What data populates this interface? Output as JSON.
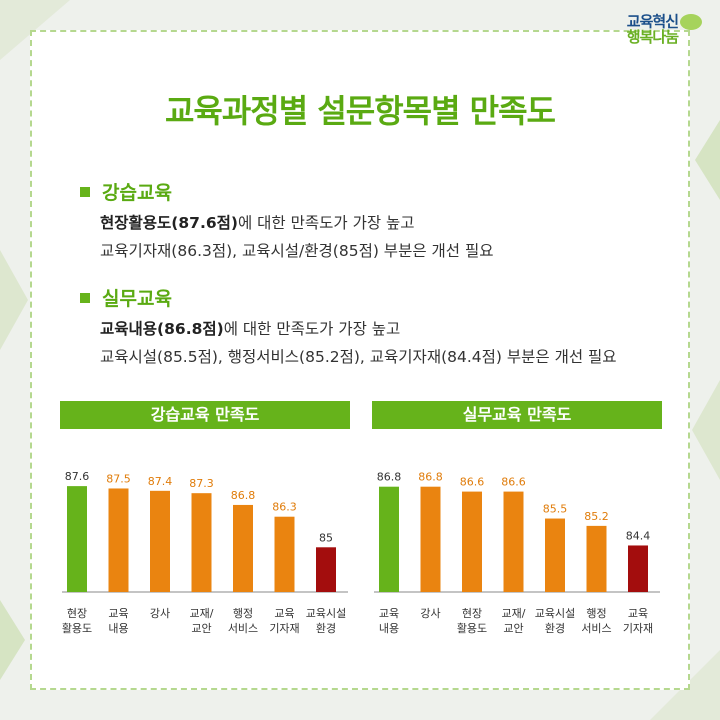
{
  "logo": {
    "part1": "교육혁신",
    "part2": "행복나눔"
  },
  "title": "교육과정별 설문항목별 만족도",
  "summary": [
    {
      "name": "강습교육",
      "highlight": "현장활용도(87.6점)",
      "line1_rest": "에 대한 만족도가 가장 높고",
      "line2": "교육기자재(86.3점), 교육시설/환경(85점) 부분은 개선 필요"
    },
    {
      "name": "실무교육",
      "highlight": "교육내용(86.8점)",
      "line1_rest": "에 대한 만족도가 가장 높고",
      "line2": "교육시설(85.5점), 행정서비스(85.2점), 교육기자재(84.4점) 부분은 개선 필요"
    }
  ],
  "colors": {
    "best": "#66b31b",
    "mid": "#ea8410",
    "worst": "#a30d0d",
    "accent": "#5aaa12"
  },
  "chart_data": [
    {
      "type": "bar",
      "title": "강습교육 만족도",
      "categories": [
        [
          "현장",
          "활용도"
        ],
        [
          "교육",
          "내용"
        ],
        [
          "강사"
        ],
        [
          "교재/",
          "교안"
        ],
        [
          "행정",
          "서비스"
        ],
        [
          "교육",
          "기자재"
        ],
        [
          "교육시설",
          "환경"
        ]
      ],
      "values": [
        87.6,
        87.5,
        87.4,
        87.3,
        86.8,
        86.3,
        85
      ],
      "value_labels": [
        "87.6",
        "87.5",
        "87.4",
        "87.3",
        "86.8",
        "86.3",
        "85"
      ],
      "bar_colors": [
        "best",
        "mid",
        "mid",
        "mid",
        "mid",
        "mid",
        "worst"
      ],
      "ylim": [
        83.1,
        88.2
      ],
      "xlabel": "",
      "ylabel": ""
    },
    {
      "type": "bar",
      "title": "실무교육 만족도",
      "categories": [
        [
          "교육",
          "내용"
        ],
        [
          "강사"
        ],
        [
          "현장",
          "활용도"
        ],
        [
          "교재/",
          "교안"
        ],
        [
          "교육시설",
          "환경"
        ],
        [
          "행정",
          "서비스"
        ],
        [
          "교육",
          "기자재"
        ]
      ],
      "values": [
        86.8,
        86.8,
        86.6,
        86.6,
        85.5,
        85.2,
        84.4
      ],
      "value_labels": [
        "86.8",
        "86.8",
        "86.6",
        "86.6",
        "85.5",
        "85.2",
        "84.4"
      ],
      "bar_colors": [
        "best",
        "mid",
        "mid",
        "mid",
        "mid",
        "mid",
        "worst"
      ],
      "ylim": [
        82.5,
        87.4
      ],
      "xlabel": "",
      "ylabel": ""
    }
  ]
}
